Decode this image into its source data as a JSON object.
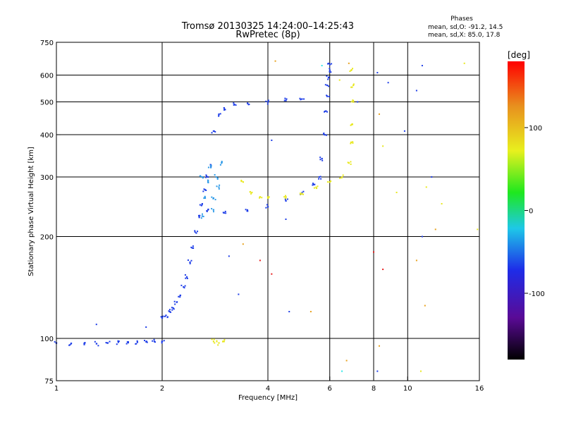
{
  "header": {
    "title_line1": "Tromsø 20130325 14:24:00–14:25:43",
    "title_line2": "RwPretec (8p)",
    "phases_label": "Phases",
    "phases_o": "mean, sd,O: -91.2, 14.5",
    "phases_x": "mean, sd,X:  85.0, 17.8"
  },
  "chart_data": {
    "type": "scatter",
    "xlabel": "Frequency [MHz]",
    "ylabel": "Stationary phase Virtual Height [km]",
    "x_scale": "log",
    "y_scale": "log",
    "xlim": [
      1,
      16
    ],
    "ylim": [
      75,
      750
    ],
    "x_ticks": [
      1,
      2,
      4,
      6,
      8,
      10,
      16
    ],
    "y_ticks": [
      75,
      100,
      200,
      300,
      400,
      500,
      600,
      750
    ],
    "x_grid": [
      2,
      4,
      6,
      8,
      10
    ],
    "y_grid": [
      100,
      200,
      300,
      400,
      500,
      600
    ],
    "colorbar": {
      "label": "[deg]",
      "min": -180,
      "max": 180,
      "ticks": [
        -100,
        0,
        100
      ]
    },
    "series": [
      {
        "color": "#1e3ee8",
        "points": [
          [
            1.0,
            97
          ],
          [
            1.1,
            96.5
          ],
          [
            1.2,
            96
          ],
          [
            1.3,
            96.5
          ],
          [
            1.4,
            97
          ],
          [
            1.5,
            97.5
          ],
          [
            1.6,
            97.2
          ],
          [
            1.7,
            97.5
          ],
          [
            1.8,
            97.8
          ],
          [
            1.9,
            98
          ],
          [
            2.0,
            98
          ],
          [
            2.0,
            115
          ],
          [
            2.05,
            117
          ],
          [
            2.1,
            120
          ],
          [
            2.15,
            123
          ],
          [
            2.2,
            128
          ],
          [
            2.25,
            134
          ],
          [
            2.3,
            142
          ],
          [
            2.35,
            152
          ],
          [
            2.4,
            168
          ],
          [
            2.45,
            185
          ],
          [
            2.5,
            205
          ],
          [
            2.55,
            228
          ],
          [
            2.6,
            250
          ],
          [
            2.65,
            275
          ],
          [
            2.7,
            300
          ],
          [
            2.75,
            325
          ],
          [
            2.8,
            410
          ],
          [
            2.9,
            460
          ],
          [
            3.0,
            480
          ],
          [
            3.2,
            490
          ],
          [
            3.5,
            495
          ],
          [
            4.0,
            500
          ],
          [
            4.5,
            505
          ],
          [
            5.0,
            510
          ],
          [
            2.7,
            240
          ],
          [
            3.0,
            235
          ],
          [
            3.5,
            238
          ],
          [
            4.0,
            245
          ],
          [
            4.5,
            255
          ],
          [
            5.0,
            268
          ],
          [
            5.4,
            285
          ],
          [
            5.6,
            300
          ],
          [
            5.7,
            340
          ],
          [
            5.8,
            400
          ],
          [
            5.85,
            470
          ],
          [
            5.9,
            520
          ],
          [
            5.9,
            560
          ],
          [
            5.95,
            590
          ],
          [
            6.0,
            620
          ],
          [
            6.0,
            645
          ]
        ]
      },
      {
        "color": "#2f9be8",
        "points": [
          [
            2.6,
            230
          ],
          [
            2.65,
            260
          ],
          [
            2.7,
            290
          ],
          [
            2.75,
            320
          ],
          [
            2.8,
            260
          ],
          [
            2.85,
            300
          ],
          [
            2.9,
            280
          ],
          [
            2.95,
            330
          ],
          [
            2.6,
            300
          ],
          [
            2.8,
            240
          ]
        ]
      },
      {
        "color": "#e8e81e",
        "points": [
          [
            3.4,
            290
          ],
          [
            3.6,
            270
          ],
          [
            3.8,
            262
          ],
          [
            4.0,
            260
          ],
          [
            4.5,
            262
          ],
          [
            5.0,
            268
          ],
          [
            5.5,
            278
          ],
          [
            6.0,
            290
          ],
          [
            6.5,
            300
          ],
          [
            6.8,
            330
          ],
          [
            6.9,
            380
          ],
          [
            6.95,
            430
          ],
          [
            7.0,
            500
          ],
          [
            7.0,
            560
          ],
          [
            6.9,
            620
          ],
          [
            2.8,
            98
          ],
          [
            2.9,
            97
          ],
          [
            3.0,
            98
          ]
        ]
      }
    ],
    "noise_points": [
      [
        1.3,
        110,
        "#1e3ee8"
      ],
      [
        1.8,
        108,
        "#1e3ee8"
      ],
      [
        3.1,
        175,
        "#1e3ee8"
      ],
      [
        3.4,
        190,
        "#e8a21e"
      ],
      [
        3.3,
        135,
        "#1e3ee8"
      ],
      [
        3.8,
        170,
        "#e81e1e"
      ],
      [
        4.1,
        155,
        "#e81e1e"
      ],
      [
        4.5,
        225,
        "#1e3ee8"
      ],
      [
        4.1,
        385,
        "#1e3ee8"
      ],
      [
        5.3,
        120,
        "#e8a21e"
      ],
      [
        4.2,
        660,
        "#e8a21e"
      ],
      [
        5.7,
        640,
        "#2fe8e8"
      ],
      [
        6.4,
        580,
        "#e8e81e"
      ],
      [
        6.8,
        650,
        "#e8a21e"
      ],
      [
        7.2,
        500,
        "#1e3ee8"
      ],
      [
        8.2,
        610,
        "#1e3ee8"
      ],
      [
        8.3,
        460,
        "#e8a21e"
      ],
      [
        8.5,
        370,
        "#e8e81e"
      ],
      [
        8.8,
        570,
        "#1e3ee8"
      ],
      [
        9.3,
        270,
        "#e8e81e"
      ],
      [
        9.8,
        410,
        "#1e3ee8"
      ],
      [
        10.6,
        540,
        "#1e3ee8"
      ],
      [
        11.0,
        640,
        "#1e3ee8"
      ],
      [
        11.3,
        280,
        "#e8e81e"
      ],
      [
        11.7,
        300,
        "#1e3ee8"
      ],
      [
        12.5,
        250,
        "#e8e81e"
      ],
      [
        14.5,
        650,
        "#e8e81e"
      ],
      [
        15.8,
        210,
        "#e8e81e"
      ],
      [
        10.6,
        170,
        "#e8a21e"
      ],
      [
        11.0,
        200,
        "#1e3ee8"
      ],
      [
        11.2,
        125,
        "#e8a21e"
      ],
      [
        8.3,
        95,
        "#e8a21e"
      ],
      [
        8.2,
        80,
        "#1e3ee8"
      ],
      [
        6.7,
        86,
        "#e8a21e"
      ],
      [
        6.5,
        80,
        "#2fe8e8"
      ],
      [
        10.9,
        80,
        "#e8e81e"
      ],
      [
        8.0,
        180,
        "#e81e1e"
      ],
      [
        8.5,
        160,
        "#e81e1e"
      ],
      [
        12.0,
        210,
        "#e8a21e"
      ],
      [
        4.6,
        120,
        "#1e3ee8"
      ]
    ]
  }
}
